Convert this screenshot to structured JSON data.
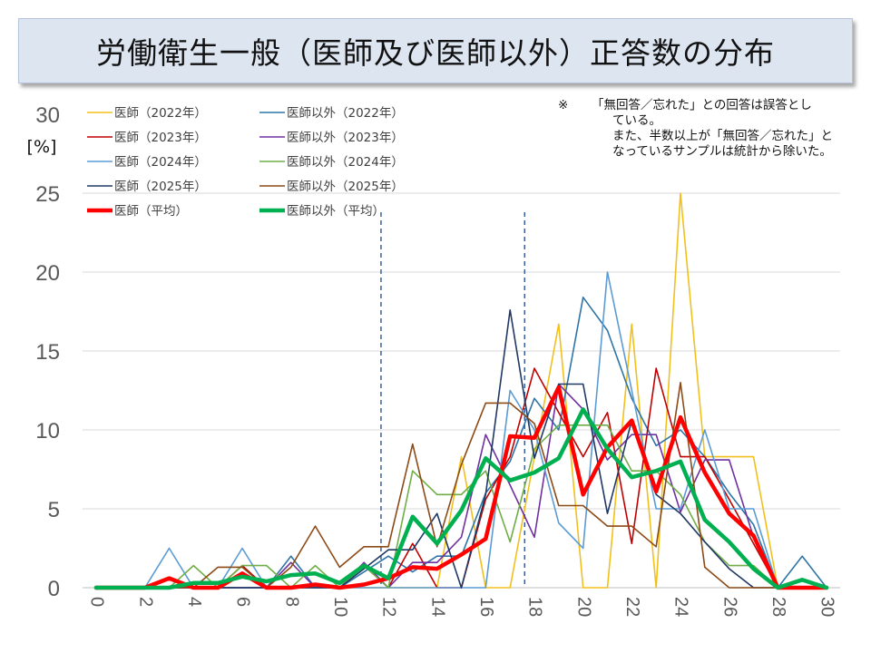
{
  "title": "労働衛生一般（医師及び医師以外）正答数の分布",
  "note": {
    "mark": "※",
    "line1": "「無回答／忘れた」との回答は誤答とし",
    "line2": "ている。",
    "line3": "また、半数以上が「無回答／忘れた」と",
    "line4": "なっているサンプルは統計から除いた。"
  },
  "colors": {
    "grid": "#d9d9d9",
    "axis": "#bfbfbf",
    "tick_text": "#595959",
    "dashed": "#2e5597"
  },
  "chart_data": {
    "type": "line",
    "title": "労働衛生一般（医師及び医師以外）正答数の分布",
    "ylabel_top": "30",
    "ylabel_unit": "[%]",
    "xlim": [
      0,
      30
    ],
    "ylim": [
      0,
      30
    ],
    "xticks": [
      0,
      2,
      4,
      6,
      8,
      10,
      12,
      14,
      16,
      18,
      20,
      22,
      24,
      26,
      28,
      30
    ],
    "yticks": [
      0,
      5,
      10,
      15,
      20,
      25
    ],
    "reference_lines_x": [
      11.7,
      17.6
    ],
    "series": [
      {
        "name": "医師（2022年）",
        "color": "#f2c01c",
        "width": 1.6,
        "x": [
          0,
          1,
          2,
          3,
          4,
          5,
          6,
          7,
          8,
          9,
          10,
          11,
          12,
          13,
          14,
          15,
          16,
          17,
          18,
          19,
          20,
          21,
          22,
          23,
          24,
          25,
          26,
          27,
          28,
          29,
          30
        ],
        "values": [
          0,
          0,
          0,
          0,
          0,
          0,
          0,
          0,
          0,
          0,
          0,
          0,
          0,
          0,
          0,
          8.3,
          0,
          0,
          8.3,
          16.7,
          0,
          0,
          16.7,
          0,
          25,
          8.3,
          8.3,
          8.3,
          0,
          0,
          0
        ]
      },
      {
        "name": "医師以外（2022年）",
        "color": "#2e75a6",
        "width": 1.6,
        "x": [
          0,
          1,
          2,
          3,
          4,
          5,
          6,
          7,
          8,
          9,
          10,
          11,
          12,
          13,
          14,
          15,
          16,
          17,
          18,
          19,
          20,
          21,
          22,
          23,
          24,
          25,
          26,
          27,
          28,
          29,
          30
        ],
        "values": [
          0,
          0,
          0,
          0,
          0,
          0,
          0,
          0,
          2,
          0,
          0,
          1,
          2,
          1,
          2,
          2,
          6,
          8,
          12,
          10,
          18.4,
          16.3,
          12,
          9,
          10,
          8.3,
          6,
          4,
          0,
          2,
          0
        ]
      },
      {
        "name": "医師（2023年）",
        "color": "#c00000",
        "width": 1.6,
        "x": [
          0,
          1,
          2,
          3,
          4,
          5,
          6,
          7,
          8,
          9,
          10,
          11,
          12,
          13,
          14,
          15,
          16,
          17,
          18,
          19,
          20,
          21,
          22,
          23,
          24,
          25,
          26,
          27,
          28,
          29,
          30
        ],
        "values": [
          0,
          0,
          0,
          0,
          0,
          0,
          1.4,
          0,
          0,
          0,
          0,
          1.4,
          0,
          2.8,
          0,
          0,
          5.6,
          8.3,
          13.9,
          11.1,
          8.3,
          11.1,
          2.8,
          13.9,
          8.3,
          8.3,
          5.6,
          2.8,
          0,
          0,
          0
        ]
      },
      {
        "name": "医師以外（2023年）",
        "color": "#7030a0",
        "width": 1.6,
        "x": [
          0,
          1,
          2,
          3,
          4,
          5,
          6,
          7,
          8,
          9,
          10,
          11,
          12,
          13,
          14,
          15,
          16,
          17,
          18,
          19,
          20,
          21,
          22,
          23,
          24,
          25,
          26,
          27,
          28,
          29,
          30
        ],
        "values": [
          0,
          0,
          0,
          0,
          0,
          0,
          0,
          0,
          1.6,
          0,
          0,
          1.6,
          0,
          1.6,
          1.6,
          3.2,
          9.7,
          6.5,
          3.2,
          12.9,
          11.3,
          8.1,
          9.7,
          9.7,
          4.8,
          8.1,
          8.1,
          3.2,
          0,
          0,
          0
        ]
      },
      {
        "name": "医師（2024年）",
        "color": "#5b9bd5",
        "width": 1.6,
        "x": [
          0,
          1,
          2,
          3,
          4,
          5,
          6,
          7,
          8,
          9,
          10,
          11,
          12,
          13,
          14,
          15,
          16,
          17,
          18,
          19,
          20,
          21,
          22,
          23,
          24,
          25,
          26,
          27,
          28,
          29,
          30
        ],
        "values": [
          0,
          0,
          0,
          2.5,
          0,
          0,
          2.5,
          0,
          0,
          0,
          0,
          0,
          0,
          0,
          0,
          0,
          0,
          12.5,
          10,
          4.1,
          2.5,
          20,
          12.5,
          5,
          5,
          10,
          5,
          5,
          0,
          0,
          0
        ]
      },
      {
        "name": "医師以外（2024年）",
        "color": "#70ad47",
        "width": 1.6,
        "x": [
          0,
          1,
          2,
          3,
          4,
          5,
          6,
          7,
          8,
          9,
          10,
          11,
          12,
          13,
          14,
          15,
          16,
          17,
          18,
          19,
          20,
          21,
          22,
          23,
          24,
          25,
          26,
          27,
          28,
          29,
          30
        ],
        "values": [
          0,
          0,
          0,
          0,
          1.4,
          0,
          1.4,
          1.4,
          0,
          1.4,
          0,
          1.4,
          0,
          7.4,
          5.9,
          5.9,
          7.4,
          2.9,
          8.8,
          10.3,
          10.3,
          10.3,
          7.4,
          7.4,
          5.9,
          2.9,
          1.4,
          1.4,
          0,
          0,
          0
        ]
      },
      {
        "name": "医師（2025年）",
        "color": "#1f3864",
        "width": 1.6,
        "x": [
          0,
          1,
          2,
          3,
          4,
          5,
          6,
          7,
          8,
          9,
          10,
          11,
          12,
          13,
          14,
          15,
          16,
          17,
          18,
          19,
          20,
          21,
          22,
          23,
          24,
          25,
          26,
          27,
          28,
          29,
          30
        ],
        "values": [
          0,
          0,
          0,
          0,
          0,
          0,
          0,
          0,
          0,
          0,
          0,
          1.2,
          2.4,
          2.4,
          4.7,
          0,
          5.9,
          17.6,
          8.2,
          12.9,
          12.9,
          4.7,
          10.6,
          5.9,
          4.7,
          2.9,
          1.2,
          0,
          0,
          0,
          0
        ]
      },
      {
        "name": "医師以外（2025年）",
        "color": "#8c4a16",
        "width": 1.6,
        "x": [
          0,
          1,
          2,
          3,
          4,
          5,
          6,
          7,
          8,
          9,
          10,
          11,
          12,
          13,
          14,
          15,
          16,
          17,
          18,
          19,
          20,
          21,
          22,
          23,
          24,
          25,
          26,
          27,
          28,
          29,
          30
        ],
        "values": [
          0,
          0,
          0,
          0,
          0,
          1.3,
          1.3,
          0,
          1.3,
          3.9,
          1.3,
          2.6,
          2.6,
          9.1,
          2.6,
          7.8,
          11.7,
          11.7,
          10.4,
          5.2,
          5.2,
          3.9,
          3.9,
          2.6,
          13,
          1.3,
          0,
          0,
          0,
          0,
          0
        ]
      },
      {
        "name": "医師（平均）",
        "color": "#ff0000",
        "width": 4.5,
        "x": [
          0,
          1,
          2,
          3,
          4,
          5,
          6,
          7,
          8,
          9,
          10,
          11,
          12,
          13,
          14,
          15,
          16,
          17,
          18,
          19,
          20,
          21,
          22,
          23,
          24,
          25,
          26,
          27,
          28,
          29,
          30
        ],
        "values": [
          0,
          0,
          0,
          0.6,
          0,
          0,
          0.9,
          0,
          0,
          0.2,
          0,
          0.2,
          0.6,
          1.3,
          1.2,
          2.1,
          3.1,
          9.6,
          9.5,
          12.7,
          5.9,
          8.9,
          10.6,
          6.1,
          10.8,
          7.3,
          4.7,
          3.3,
          0,
          0,
          0
        ]
      },
      {
        "name": "医師以外（平均）",
        "color": "#00b050",
        "width": 4.5,
        "x": [
          0,
          1,
          2,
          3,
          4,
          5,
          6,
          7,
          8,
          9,
          10,
          11,
          12,
          13,
          14,
          15,
          16,
          17,
          18,
          19,
          20,
          21,
          22,
          23,
          24,
          25,
          26,
          27,
          28,
          29,
          30
        ],
        "values": [
          0,
          0,
          0,
          0,
          0.3,
          0.3,
          0.7,
          0.4,
          0.8,
          0.9,
          0.3,
          1.4,
          0.6,
          4.5,
          2.8,
          4.9,
          8.2,
          6.8,
          7.3,
          8.2,
          11.3,
          8.8,
          7,
          7.4,
          8,
          4.3,
          2.9,
          1.2,
          0,
          0.5,
          0
        ]
      }
    ]
  }
}
